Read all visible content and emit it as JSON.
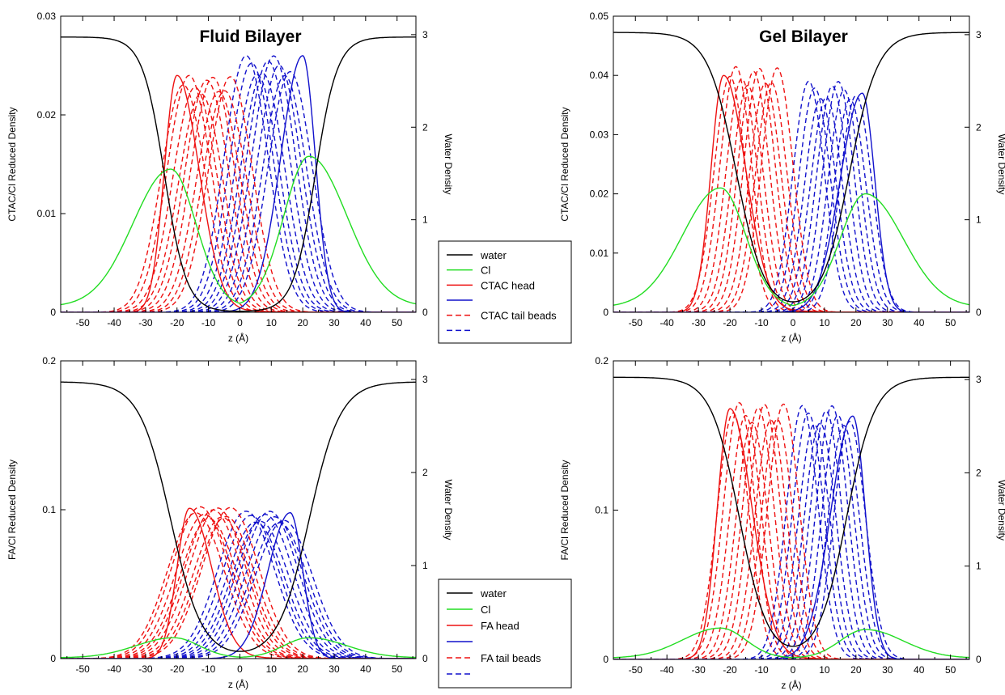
{
  "chart_data": [
    {
      "type": "line",
      "title": "Fluid Bilayer",
      "xlabel": "z (Å)",
      "ylabel": "CTAC/Cl Reduced Density",
      "y2label": "Water Density",
      "xlim": [
        -57,
        56
      ],
      "ylim": [
        0,
        0.03
      ],
      "y2lim": [
        0,
        3.2
      ],
      "xticks": [
        "-50",
        "-40",
        "-30",
        "-20",
        "-10",
        "0",
        "10",
        "20",
        "30",
        "40",
        "50"
      ],
      "yticks": [
        "0",
        "0.01",
        "0.02",
        "0.03"
      ],
      "y2ticks": [
        "0",
        "1",
        "2",
        "3"
      ],
      "params": {
        "water_top": 3.0,
        "water_edge": 24,
        "water_w": 3.5,
        "cl_left": [
          -22,
          0.0145
        ],
        "cl_right": [
          22,
          0.0158
        ],
        "head_left": [
          -20,
          0.024
        ],
        "head_right": [
          20,
          0.026
        ],
        "tail_red": [
          -18,
          -3,
          0.024
        ],
        "tail_blue": [
          2,
          16,
          0.026
        ],
        "tail_w": 7
      },
      "legend": {
        "placement": "right-middle",
        "entries": [
          "water",
          "Cl",
          "CTAC head",
          "",
          "CTAC tail beads",
          ""
        ]
      }
    },
    {
      "type": "line",
      "title": "Gel Bilayer",
      "xlabel": "z (Å)",
      "ylabel": "CTAC/Cl Reduced Density",
      "y2label": "Water Density",
      "xlim": [
        -57,
        56
      ],
      "ylim": [
        0,
        0.05
      ],
      "y2lim": [
        0,
        3.2
      ],
      "xticks": [
        "-50",
        "-40",
        "-30",
        "-20",
        "-10",
        "0",
        "10",
        "20",
        "30",
        "40",
        "50"
      ],
      "yticks": [
        "0",
        "0.01",
        "0.02",
        "0.03",
        "0.04",
        "0.05"
      ],
      "y2ticks": [
        "0",
        "1",
        "2",
        "3"
      ],
      "params": {
        "water_top": 3.05,
        "water_edge": 18,
        "water_w": 4.5,
        "cl_left": [
          -23,
          0.021
        ],
        "cl_right": [
          23,
          0.02
        ],
        "head_left": [
          -22,
          0.04
        ],
        "head_right": [
          22,
          0.037
        ],
        "tail_red": [
          -20,
          -5,
          0.0415
        ],
        "tail_blue": [
          5,
          20,
          0.039
        ],
        "tail_w": 5
      },
      "legend": {
        "placement": "none",
        "entries": []
      }
    },
    {
      "type": "line",
      "title": "",
      "xlabel": "z (Å)",
      "ylabel": "FA/Cl Reduced Density",
      "y2label": "Water Density",
      "xlim": [
        -57,
        56
      ],
      "ylim": [
        0,
        0.2
      ],
      "y2lim": [
        0,
        3.2
      ],
      "xticks": [
        "-50",
        "-40",
        "-30",
        "-20",
        "-10",
        "0",
        "10",
        "20",
        "30",
        "40",
        "50"
      ],
      "yticks": [
        "0",
        "0.1",
        "0.2"
      ],
      "y2ticks": [
        "0",
        "1",
        "2",
        "3"
      ],
      "params": {
        "water_top": 3.0,
        "water_edge": 22,
        "water_w": 5,
        "cl_left": [
          -21,
          0.014
        ],
        "cl_right": [
          22,
          0.014
        ],
        "head_left": [
          -16,
          0.101
        ],
        "head_right": [
          16,
          0.098
        ],
        "tail_red": [
          -14,
          -3,
          0.102
        ],
        "tail_blue": [
          2,
          14,
          0.099
        ],
        "tail_w": 9
      },
      "legend": {
        "placement": "right-bottom",
        "entries": [
          "water",
          "Cl",
          "FA head",
          "",
          "FA tail beads",
          ""
        ]
      }
    },
    {
      "type": "line",
      "title": "",
      "xlabel": "z (Å)",
      "ylabel": "FA/Cl Reduced Density",
      "y2label": "Water Density",
      "xlim": [
        -57,
        56
      ],
      "ylim": [
        0,
        0.2
      ],
      "y2lim": [
        0,
        3.2
      ],
      "xticks": [
        "-50",
        "-40",
        "-30",
        "-20",
        "-10",
        "0",
        "10",
        "20",
        "30",
        "40",
        "50"
      ],
      "yticks": [
        "0",
        "0.1",
        "0.2"
      ],
      "y2ticks": [
        "0",
        "1",
        "2",
        "3"
      ],
      "params": {
        "water_top": 3.05,
        "water_edge": 17,
        "water_w": 4.5,
        "cl_left": [
          -23,
          0.021
        ],
        "cl_right": [
          23,
          0.02
        ],
        "head_left": [
          -20,
          0.168
        ],
        "head_right": [
          19,
          0.163
        ],
        "tail_red": [
          -19,
          -3,
          0.172
        ],
        "tail_blue": [
          3,
          18,
          0.17
        ],
        "tail_w": 5
      },
      "legend": {
        "placement": "none",
        "entries": []
      }
    }
  ],
  "colors": {
    "water": "#000000",
    "cl": "#22dd22",
    "red": "#ee1111",
    "blue": "#1111cc"
  }
}
